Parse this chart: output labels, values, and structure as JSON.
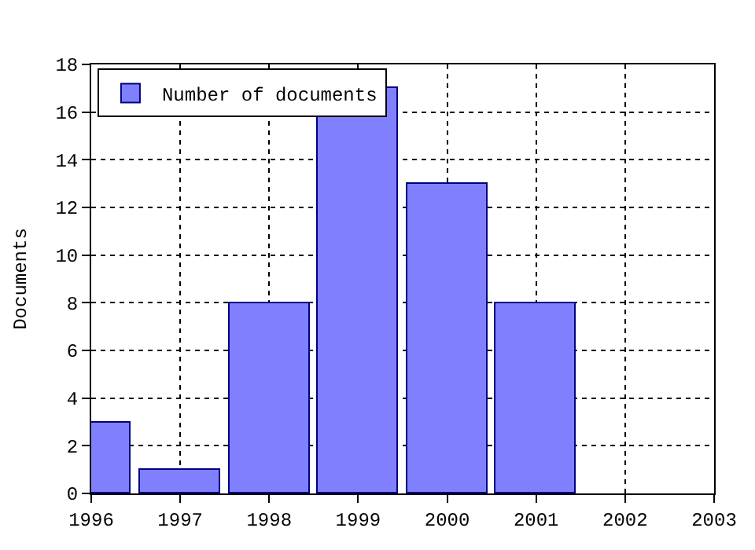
{
  "chart_data": {
    "type": "bar",
    "ylabel": "Documents",
    "x": [
      1996,
      1997,
      1998,
      1999,
      2000,
      2001
    ],
    "series": [
      {
        "name": "Number of documents",
        "color": "#8080ff",
        "values": [
          3,
          1,
          8,
          17,
          13,
          8
        ]
      }
    ],
    "xlim": [
      1996,
      2003
    ],
    "xticks": [
      1996,
      1997,
      1998,
      1999,
      2000,
      2001,
      2002,
      2003
    ],
    "ylim": [
      0,
      18
    ],
    "yticks": [
      0,
      2,
      4,
      6,
      8,
      10,
      12,
      14,
      16,
      18
    ],
    "grid": true,
    "legend": "top left"
  }
}
